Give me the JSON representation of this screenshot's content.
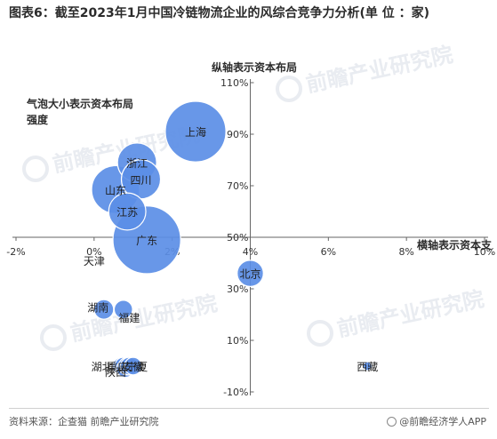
{
  "title": "图表6：截至2023年1月中国冷链物流企业的风综合竞争力分析(单 位 ：家)",
  "footer": {
    "source": "资料来源：企查猫 前瞻产业研究院",
    "brand": "@前瞻经济学人APP"
  },
  "watermark": "前瞻产业研究院",
  "colors": {
    "bubble": "#5b8ee6",
    "axis": "#666666",
    "watermark": "#e9ecf1"
  },
  "chart_data": {
    "type": "scatter",
    "xlabel": "横轴表示资本支",
    "ylabel": "纵轴表示资本布局",
    "size_label": "气泡大小表示资本布局强度",
    "xlim": [
      -2,
      10
    ],
    "ylim": [
      -10,
      110
    ],
    "x_ticks": [
      "-2%",
      "0%",
      "2%",
      "4%",
      "6%",
      "8%",
      "10%"
    ],
    "y_ticks": [
      "-10%",
      "10%",
      "30%",
      "50%",
      "70%",
      "90%",
      "110%"
    ],
    "points": [
      {
        "name": "上海",
        "x": 2.6,
        "y": 91,
        "size": 2.4
      },
      {
        "name": "浙江",
        "x": 1.1,
        "y": 79,
        "size": 1.0
      },
      {
        "name": "四川",
        "x": 1.2,
        "y": 72.5,
        "size": 1.0
      },
      {
        "name": "山东",
        "x": 0.55,
        "y": 68.5,
        "size": 1.5
      },
      {
        "name": "江苏",
        "x": 0.85,
        "y": 60,
        "size": 0.9
      },
      {
        "name": "广东",
        "x": 1.35,
        "y": 49,
        "size": 3.0
      },
      {
        "name": "北京",
        "x": 4.0,
        "y": 36,
        "size": 0.45
      },
      {
        "name": "湖南",
        "x": 0.25,
        "y": 22,
        "size": 0.25
      },
      {
        "name": "福建",
        "x": 0.75,
        "y": 22,
        "size": 0.22
      },
      {
        "name": "湖北",
        "x": 0.7,
        "y": 0,
        "size": 0.2
      },
      {
        "name": "天津",
        "x": 0.75,
        "y": 0,
        "size": 0.2
      },
      {
        "name": "陕西",
        "x": 0.8,
        "y": -1,
        "size": 0.2
      },
      {
        "name": "重庆",
        "x": 0.85,
        "y": 0,
        "size": 0.2
      },
      {
        "name": "安徽",
        "x": 0.9,
        "y": 0,
        "size": 0.2
      },
      {
        "name": "宁夏",
        "x": 1.0,
        "y": 0,
        "size": 0.2
      },
      {
        "name": "西藏",
        "x": 7.0,
        "y": 0,
        "size": 0.05
      }
    ],
    "point_labels": [
      {
        "name": "上海",
        "x": 2.6,
        "y": 91
      },
      {
        "name": "浙江",
        "x": 1.1,
        "y": 79
      },
      {
        "name": "四川",
        "x": 1.2,
        "y": 72.5
      },
      {
        "name": "山东",
        "x": 0.55,
        "y": 68.5
      },
      {
        "name": "江苏",
        "x": 0.85,
        "y": 60
      },
      {
        "name": "广东",
        "x": 1.35,
        "y": 49
      },
      {
        "name": "天津",
        "x": 0.0,
        "y": 41
      },
      {
        "name": "北京",
        "x": 4.0,
        "y": 36
      },
      {
        "name": "湖南",
        "x": 0.1,
        "y": 23
      },
      {
        "name": "福建",
        "x": 0.9,
        "y": 19
      },
      {
        "name": "湖北",
        "x": 0.2,
        "y": 0
      },
      {
        "name": "重庆",
        "x": 0.6,
        "y": 0
      },
      {
        "name": "安徽",
        "x": 1.0,
        "y": 0
      },
      {
        "name": "宁夏",
        "x": 1.1,
        "y": 0
      },
      {
        "name": "陕西",
        "x": 0.55,
        "y": -2
      },
      {
        "name": "西藏",
        "x": 7.0,
        "y": 0
      }
    ]
  }
}
